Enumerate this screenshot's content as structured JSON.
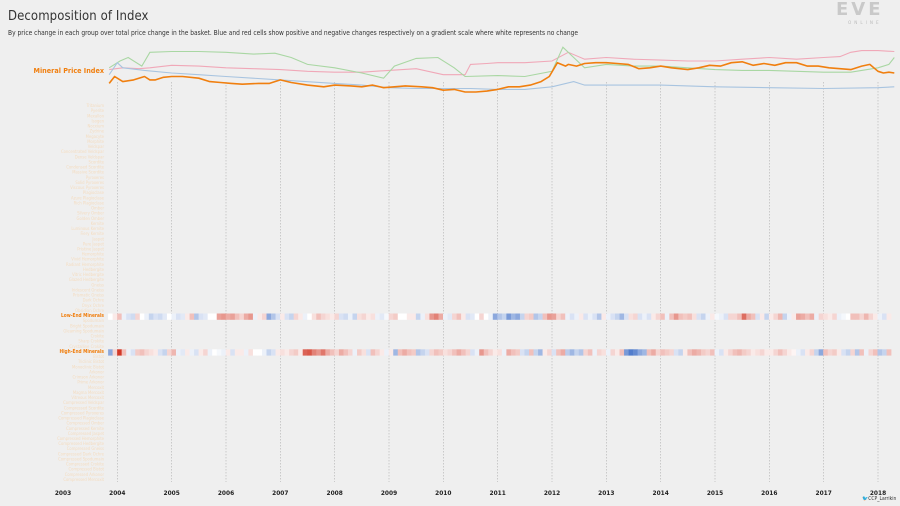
{
  "header": {
    "title": "Decomposition of Index",
    "subtitle": "By price change in each group over total price change in the basket. Blue and red cells show positive and negative changes respectively on a gradient scale where white represents no change"
  },
  "logo": {
    "text": "EVE",
    "subtext": "ONLINE"
  },
  "credit": {
    "icon": "twitter-icon",
    "handle": "CCP_Larrikin"
  },
  "colors": {
    "index_line": "#f07f0f",
    "highlight_label": "#f07f0f",
    "faded_label": "#f4dcc0",
    "positive_cell": "#3f6ec6",
    "negative_cell": "#cf2e1c",
    "series_pink": "#f0a8b8",
    "series_green": "#a9d7a3",
    "series_blue": "#a8c4e0",
    "gridline": "#b0b0b0"
  },
  "chart_data": {
    "type": "heatmap",
    "x_tick_labels": [
      "2003",
      "2004",
      "2005",
      "2006",
      "2007",
      "2008",
      "2009",
      "2010",
      "2011",
      "2012",
      "2013",
      "2014",
      "2015",
      "2016",
      "2017",
      "2018"
    ],
    "xlim": [
      2003.0,
      2018.3
    ],
    "index_label": "Mineral Price Index",
    "index_series": {
      "x": [
        2003.85,
        2003.95,
        2004.1,
        2004.3,
        2004.5,
        2004.6,
        2004.7,
        2004.85,
        2005.0,
        2005.2,
        2005.5,
        2005.7,
        2005.9,
        2006.1,
        2006.3,
        2006.6,
        2006.8,
        2007.0,
        2007.2,
        2007.5,
        2007.8,
        2008.0,
        2008.3,
        2008.5,
        2008.7,
        2008.9,
        2009.1,
        2009.3,
        2009.6,
        2009.8,
        2010.0,
        2010.2,
        2010.4,
        2010.6,
        2010.8,
        2011.0,
        2011.2,
        2011.4,
        2011.6,
        2011.8,
        2011.95,
        2012.1,
        2012.25,
        2012.3,
        2012.45,
        2012.6,
        2012.8,
        2013.0,
        2013.2,
        2013.4,
        2013.6,
        2013.8,
        2014.0,
        2014.2,
        2014.35,
        2014.5,
        2014.7,
        2014.9,
        2015.1,
        2015.3,
        2015.5,
        2015.7,
        2015.9,
        2016.1,
        2016.3,
        2016.5,
        2016.7,
        2016.9,
        2017.1,
        2017.3,
        2017.5,
        2017.7,
        2017.85,
        2018.0,
        2018.1,
        2018.2,
        2018.3
      ],
      "y": [
        62,
        70,
        64,
        66,
        70,
        66,
        66,
        69,
        70,
        70,
        68,
        64,
        63,
        62,
        61,
        62,
        62,
        66,
        63,
        60,
        58,
        60,
        59,
        58,
        60,
        57,
        58,
        59,
        58,
        57,
        54,
        55,
        52,
        52,
        53,
        55,
        58,
        58,
        60,
        64,
        70,
        86,
        82,
        84,
        82,
        85,
        86,
        86,
        85,
        84,
        79,
        80,
        82,
        80,
        79,
        78,
        80,
        83,
        82,
        86,
        87,
        83,
        85,
        83,
        86,
        86,
        82,
        82,
        80,
        79,
        78,
        82,
        84,
        76,
        74,
        75,
        74
      ]
    },
    "background_series": [
      {
        "x": [
          2003.85,
          2004.1,
          2004.4,
          2004.6,
          2005.0,
          2005.5,
          2006.0,
          2006.5,
          2007.0,
          2007.5,
          2008.0,
          2008.5,
          2009.0,
          2009.5,
          2010.0,
          2010.4,
          2010.5,
          2010.8,
          2011.0,
          2011.5,
          2012.0,
          2012.3,
          2012.6,
          2013.0,
          2013.5,
          2014.0,
          2014.5,
          2015.0,
          2015.5,
          2016.0,
          2016.5,
          2017.0,
          2017.3,
          2017.5,
          2017.7,
          2018.0,
          2018.3
        ],
        "y": [
          78,
          80,
          79,
          80,
          83,
          82,
          80,
          79,
          78,
          76,
          75,
          75,
          77,
          79,
          72,
          72,
          84,
          85,
          86,
          86,
          88,
          98,
          90,
          92,
          90,
          89,
          88,
          88,
          90,
          92,
          90,
          92,
          93,
          98,
          100,
          100,
          99
        ]
      },
      {
        "x": [
          2003.85,
          2004.05,
          2004.2,
          2004.45,
          2004.6,
          2005.0,
          2005.5,
          2006.0,
          2006.5,
          2006.9,
          2007.2,
          2007.5,
          2008.0,
          2008.5,
          2008.9,
          2009.1,
          2009.5,
          2009.9,
          2010.2,
          2010.4,
          2011.0,
          2011.5,
          2012.0,
          2012.2,
          2012.4,
          2012.6,
          2013.0,
          2013.5,
          2014.0,
          2014.5,
          2015.0,
          2015.5,
          2016.0,
          2016.5,
          2017.0,
          2017.5,
          2018.0,
          2018.2,
          2018.3
        ],
        "y": [
          80,
          88,
          92,
          82,
          98,
          99,
          99,
          98,
          96,
          97,
          92,
          84,
          80,
          74,
          68,
          82,
          91,
          92,
          80,
          70,
          71,
          70,
          76,
          104,
          92,
          80,
          84,
          82,
          82,
          80,
          78,
          77,
          77,
          76,
          75,
          75,
          80,
          84,
          92
        ]
      },
      {
        "x": [
          2003.85,
          2004.0,
          2004.1,
          2004.5,
          2005.0,
          2005.5,
          2006.0,
          2007.0,
          2008.0,
          2008.5,
          2009.0,
          2009.5,
          2010.0,
          2010.5,
          2011.0,
          2011.5,
          2012.0,
          2012.4,
          2012.6,
          2013.0,
          2014.0,
          2015.0,
          2016.0,
          2017.0,
          2018.0,
          2018.3
        ],
        "y": [
          72,
          86,
          80,
          77,
          74,
          72,
          70,
          66,
          62,
          60,
          57,
          56,
          56,
          56,
          55,
          55,
          58,
          64,
          60,
          60,
          60,
          58,
          57,
          56,
          57,
          58
        ]
      }
    ],
    "index_ylim": [
      45,
      110
    ],
    "rows": [
      "Tritanium",
      "Pyerite",
      "Mexallon",
      "Isogen",
      "Nocxium",
      "Zydrine",
      "Megacyte",
      "Morphite",
      "Veldspar",
      "Concentrated Veldspar",
      "Dense Veldspar",
      "Scordite",
      "Condensed Scordite",
      "Massive Scordite",
      "Pyroxeres",
      "Solid Pyroxeres",
      "Viscous Pyroxeres",
      "Plagioclase",
      "Azure Plagioclase",
      "Rich Plagioclase",
      "Omber",
      "Silvery Omber",
      "Golden Omber",
      "Kernite",
      "Luminous Kernite",
      "Fiery Kernite",
      "Jaspet",
      "Pure Jaspet",
      "Pristine Jaspet",
      "Hemorphite",
      "Vivid Hemorphite",
      "Radiant Hemorphite",
      "Hedbergite",
      "Vitric Hedbergite",
      "Glazed Hedbergite",
      "Gneiss",
      "Iridescent Gneiss",
      "Prismatic Gneiss",
      "Dark Ochre",
      "Onyx Ochre",
      "Obsidian Ochre",
      "Low-End Minerals",
      "Spodumain",
      "Bright Spodumain",
      "Gleaming Spodumain",
      "Crokite",
      "Sharp Crokite",
      "Crystalline Crokite",
      "High-End Minerals",
      "Bistot",
      "Triclinic Bistot",
      "Monoclinic Bistot",
      "Arkonor",
      "Crimson Arkonor",
      "Prime Arkonor",
      "Mercoxit",
      "Magma Mercoxit",
      "Vitreous Mercoxit",
      "Compressed Veldspar",
      "Compressed Scordite",
      "Compressed Pyroxeres",
      "Compressed Plagioclase",
      "Compressed Omber",
      "Compressed Kernite",
      "Compressed Jaspet",
      "Compressed Hemorphite",
      "Compressed Hedbergite",
      "Compressed Gneiss",
      "Compressed Dark Ochre",
      "Compressed Spodumain",
      "Compressed Crokite",
      "Compressed Bistot",
      "Compressed Arkonor",
      "Compressed Mercoxit"
    ],
    "highlighted_rows": [
      "Low-End Minerals",
      "High-End Minerals"
    ],
    "heatmap_x_start": 2003.83,
    "heatmap_x_step": 0.0833,
    "heatmap_values": {
      "Low-End Minerals": [
        0,
        -0.1,
        -0.3,
        0.1,
        0.2,
        0.25,
        -0.2,
        0,
        0.1,
        0.3,
        0.2,
        0.25,
        0.15,
        0,
        0.1,
        0.2,
        0.15,
        -0.1,
        -0.3,
        0.4,
        0.2,
        0.15,
        0,
        0,
        -0.45,
        -0.5,
        -0.4,
        -0.45,
        -0.3,
        -0.2,
        -0.4,
        -0.5,
        0.1,
        -0.1,
        -0.2,
        0.6,
        0.4,
        0.2,
        -0.1,
        0.2,
        0.3,
        -0.2,
        -0.1,
        0.1,
        0,
        -0.15,
        -0.3,
        -0.2,
        -0.15,
        -0.1,
        -0.2,
        0.2,
        0.25,
        0.1,
        0.3,
        -0.15,
        -0.2,
        -0.1,
        -0.15,
        0.1,
        0.15,
        0.05,
        -0.2,
        -0.25,
        0,
        0,
        -0.1,
        -0.1,
        0.3,
        0.1,
        -0.15,
        -0.5,
        -0.6,
        -0.4,
        0.1,
        0.15,
        -0.2,
        -0.3,
        -0.1,
        0.2,
        0.15,
        0,
        -0.2,
        0,
        0.1,
        0.6,
        0.4,
        0.3,
        0.7,
        0.5,
        0.6,
        0.3,
        -0.2,
        -0.25,
        0.4,
        0.3,
        -0.3,
        -0.5,
        -0.45,
        -0.2,
        -0.3,
        0.1,
        0.2,
        0.1,
        -0.1,
        0.2,
        0.1,
        0.2,
        0.4,
        -0.1,
        0.1,
        0.2,
        0.3,
        0.5,
        0.2,
        -0.15,
        -0.2,
        0.2,
        0.1,
        0.2,
        -0.1,
        -0.2,
        -0.3,
        0.1,
        -0.3,
        -0.5,
        -0.3,
        -0.25,
        -0.3,
        -0.15,
        0.2,
        0.3,
        0.1,
        -0.1,
        0.05,
        0.1,
        0.2,
        -0.2,
        -0.2,
        -0.3,
        -0.7,
        -0.4,
        -0.3,
        0.2,
        -0.1,
        0.3,
        -0.1,
        -0.2,
        -0.35,
        0.3,
        0.1,
        -0.1,
        -0.45,
        -0.4,
        -0.3,
        -0.4,
        0.1,
        -0.2,
        -0.15,
        -0.1,
        -0.2,
        0.1,
        0.05,
        0,
        -0.3,
        -0.3,
        -0.2,
        -0.35,
        -0.2,
        -0.1,
        0.1,
        0.2,
        -0.1,
        -0.15,
        -0.1,
        0.2,
        0.15,
        -0.15,
        -0.2,
        -0.3,
        -0.25,
        0.1,
        0.2,
        -0.3,
        -0.35,
        -0.4,
        -0.2,
        -0.1
      ],
      "High-End Minerals": [
        0.6,
        -0.2,
        -0.95,
        -0.3,
        0.1,
        0.2,
        -0.25,
        -0.3,
        -0.2,
        -0.15,
        -0.1,
        0.2,
        0.3,
        -0.2,
        -0.35,
        0.1,
        0.15,
        -0.1,
        0.1,
        0.2,
        -0.1,
        -0.2,
        0.1,
        0,
        0.05,
        0.1,
        -0.1,
        0.2,
        -0.1,
        -0.1,
        0.1,
        -0.15,
        0,
        0,
        0.1,
        0.3,
        0.2,
        -0.1,
        -0.15,
        -0.1,
        -0.2,
        -0.25,
        -0.1,
        -0.75,
        -0.8,
        -0.6,
        -0.5,
        -0.65,
        -0.4,
        -0.3,
        -0.2,
        -0.4,
        -0.3,
        -0.2,
        0.1,
        -0.25,
        -0.15,
        0.2,
        -0.3,
        -0.2,
        -0.1,
        0.1,
        -0.1,
        0.5,
        -0.3,
        -0.4,
        -0.3,
        -0.25,
        0.4,
        0.3,
        0.2,
        -0.2,
        -0.3,
        -0.25,
        -0.15,
        -0.2,
        -0.3,
        -0.4,
        -0.3,
        -0.2,
        0.2,
        0.1,
        -0.5,
        -0.3,
        -0.2,
        -0.1,
        -0.15,
        0.1,
        -0.4,
        -0.3,
        -0.25,
        0.2,
        0.3,
        -0.3,
        0.3,
        0.5,
        -0.1,
        -0.2,
        0.2,
        -0.3,
        -0.4,
        0.35,
        0.5,
        0.3,
        0.4,
        -0.2,
        -0.3,
        0.1,
        -0.2,
        -0.15,
        0.1,
        -0.2,
        -0.1,
        -0.3,
        0.7,
        0.9,
        0.8,
        0.6,
        0.5,
        -0.3,
        -0.4,
        -0.2,
        -0.3,
        -0.25,
        -0.2,
        0.2,
        0.3,
        -0.1,
        -0.3,
        -0.4,
        -0.35,
        -0.25,
        -0.2,
        -0.3,
        0.1,
        0.2,
        -0.1,
        -0.2,
        -0.3,
        -0.35,
        -0.25,
        -0.2,
        -0.1,
        -0.15,
        -0.2,
        -0.1,
        -0.1,
        -0.2,
        -0.3,
        -0.2,
        -0.1,
        -0.05,
        0.1,
        0.2,
        -0.1,
        -0.2,
        0.3,
        0.6,
        -0.3,
        -0.2,
        -0.25,
        -0.1,
        0.2,
        0.3,
        -0.2,
        0.4,
        -0.3,
        0.1,
        -0.2,
        -0.3,
        0.4,
        0.3,
        -0.3,
        -0.25,
        -0.2,
        -0.3,
        -0.35,
        -0.4,
        -0.3,
        -0.2,
        0.2,
        0.1,
        -0.3,
        -0.5,
        -0.4,
        -0.35,
        -0.3,
        -0.4,
        -0.45,
        -0.3,
        -0.2,
        -0.3
      ]
    },
    "grid": "vertical dashed at years"
  }
}
